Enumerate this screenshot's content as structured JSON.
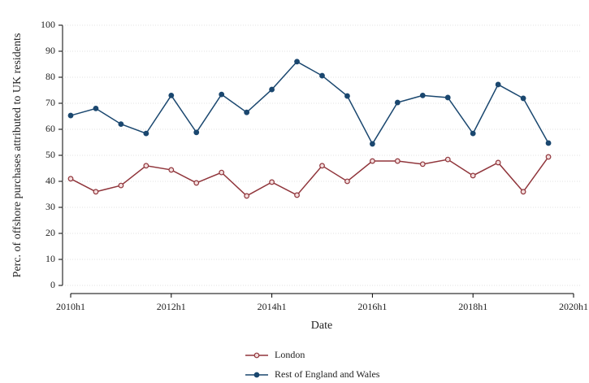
{
  "chart_data": {
    "type": "line",
    "x_label": "Date",
    "y_label": "Perc. of offshore purchases attributed to UK residents",
    "x": [
      "2010h1",
      "2010h2",
      "2011h1",
      "2011h2",
      "2012h1",
      "2012h2",
      "2013h1",
      "2013h2",
      "2014h1",
      "2014h2",
      "2015h1",
      "2015h2",
      "2016h1",
      "2016h2",
      "2017h1",
      "2017h2",
      "2018h1",
      "2018h2",
      "2019h1",
      "2019h2"
    ],
    "series": [
      {
        "name": "London",
        "color": "#90353b",
        "marker": "hollow",
        "values": [
          41,
          36,
          38.4,
          46,
          44.4,
          39.4,
          43.4,
          34.4,
          39.7,
          34.7,
          46,
          40,
          47.8,
          47.8,
          46.6,
          48.4,
          42.2,
          47.2,
          36,
          49.4
        ]
      },
      {
        "name": "Rest of England and Wales",
        "color": "#1a476f",
        "marker": "filled",
        "values": [
          65.3,
          68,
          62,
          58.4,
          73,
          58.8,
          73.4,
          66.5,
          75.3,
          86,
          80.6,
          72.8,
          54.4,
          70.3,
          73,
          72.2,
          58.4,
          77.2,
          71.9,
          54.7
        ]
      }
    ],
    "xlim": [
      "2010h1",
      "2020h1"
    ],
    "xticks": [
      "2010h1",
      "2012h1",
      "2014h1",
      "2016h1",
      "2018h1",
      "2020h1"
    ],
    "ylim": [
      0,
      100
    ],
    "yticks": [
      0,
      10,
      20,
      30,
      40,
      50,
      60,
      70,
      80,
      90,
      100
    ],
    "grid": true,
    "legend_position": "bottom"
  }
}
